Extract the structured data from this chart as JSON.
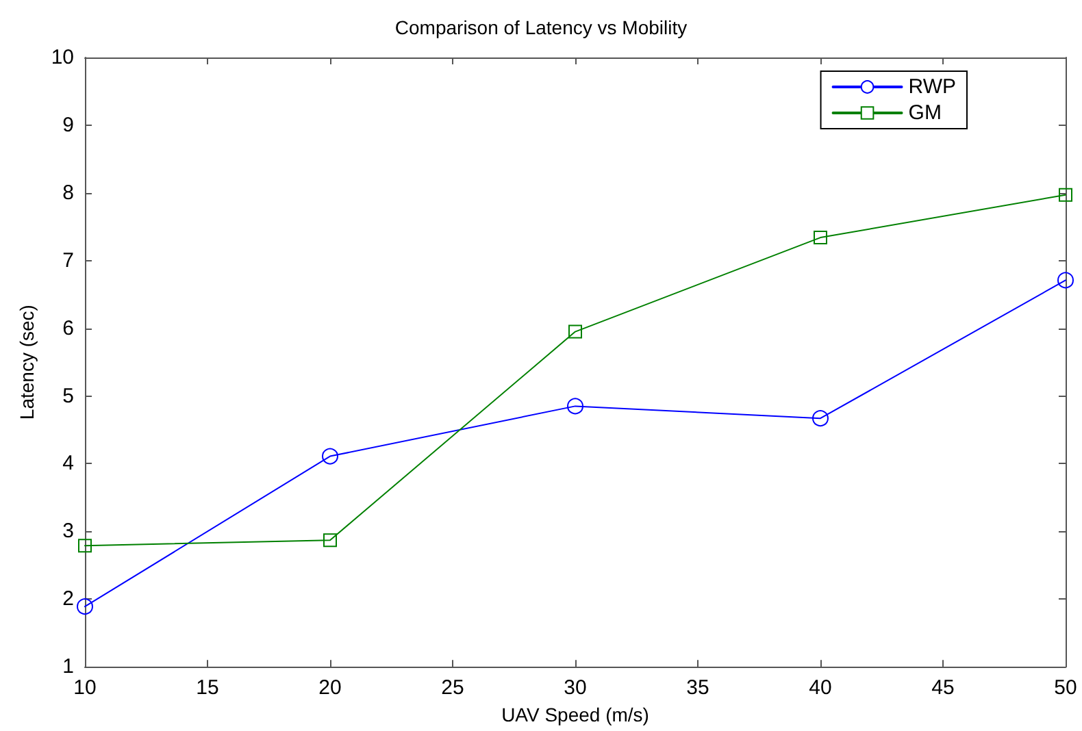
{
  "chart_data": {
    "type": "line",
    "title": "Comparison of Latency vs Mobility",
    "xlabel": "UAV Speed (m/s)",
    "ylabel": "Latency (sec)",
    "x": [
      10,
      20,
      30,
      40,
      50
    ],
    "series": [
      {
        "name": "RWP",
        "color": "#0000ff",
        "marker": "circle",
        "values": [
          1.89,
          4.11,
          4.85,
          4.67,
          6.71
        ]
      },
      {
        "name": "GM",
        "color": "#008000",
        "marker": "square",
        "values": [
          2.79,
          2.87,
          5.95,
          7.34,
          7.97
        ]
      }
    ],
    "xlim": [
      10,
      50
    ],
    "xticks": [
      10,
      15,
      20,
      25,
      30,
      35,
      40,
      45,
      50
    ],
    "ylim": [
      1,
      10
    ],
    "yticks": [
      1,
      2,
      3,
      4,
      5,
      6,
      7,
      8,
      9,
      10
    ],
    "grid": false,
    "legend": "top right",
    "line_style": "solid"
  }
}
